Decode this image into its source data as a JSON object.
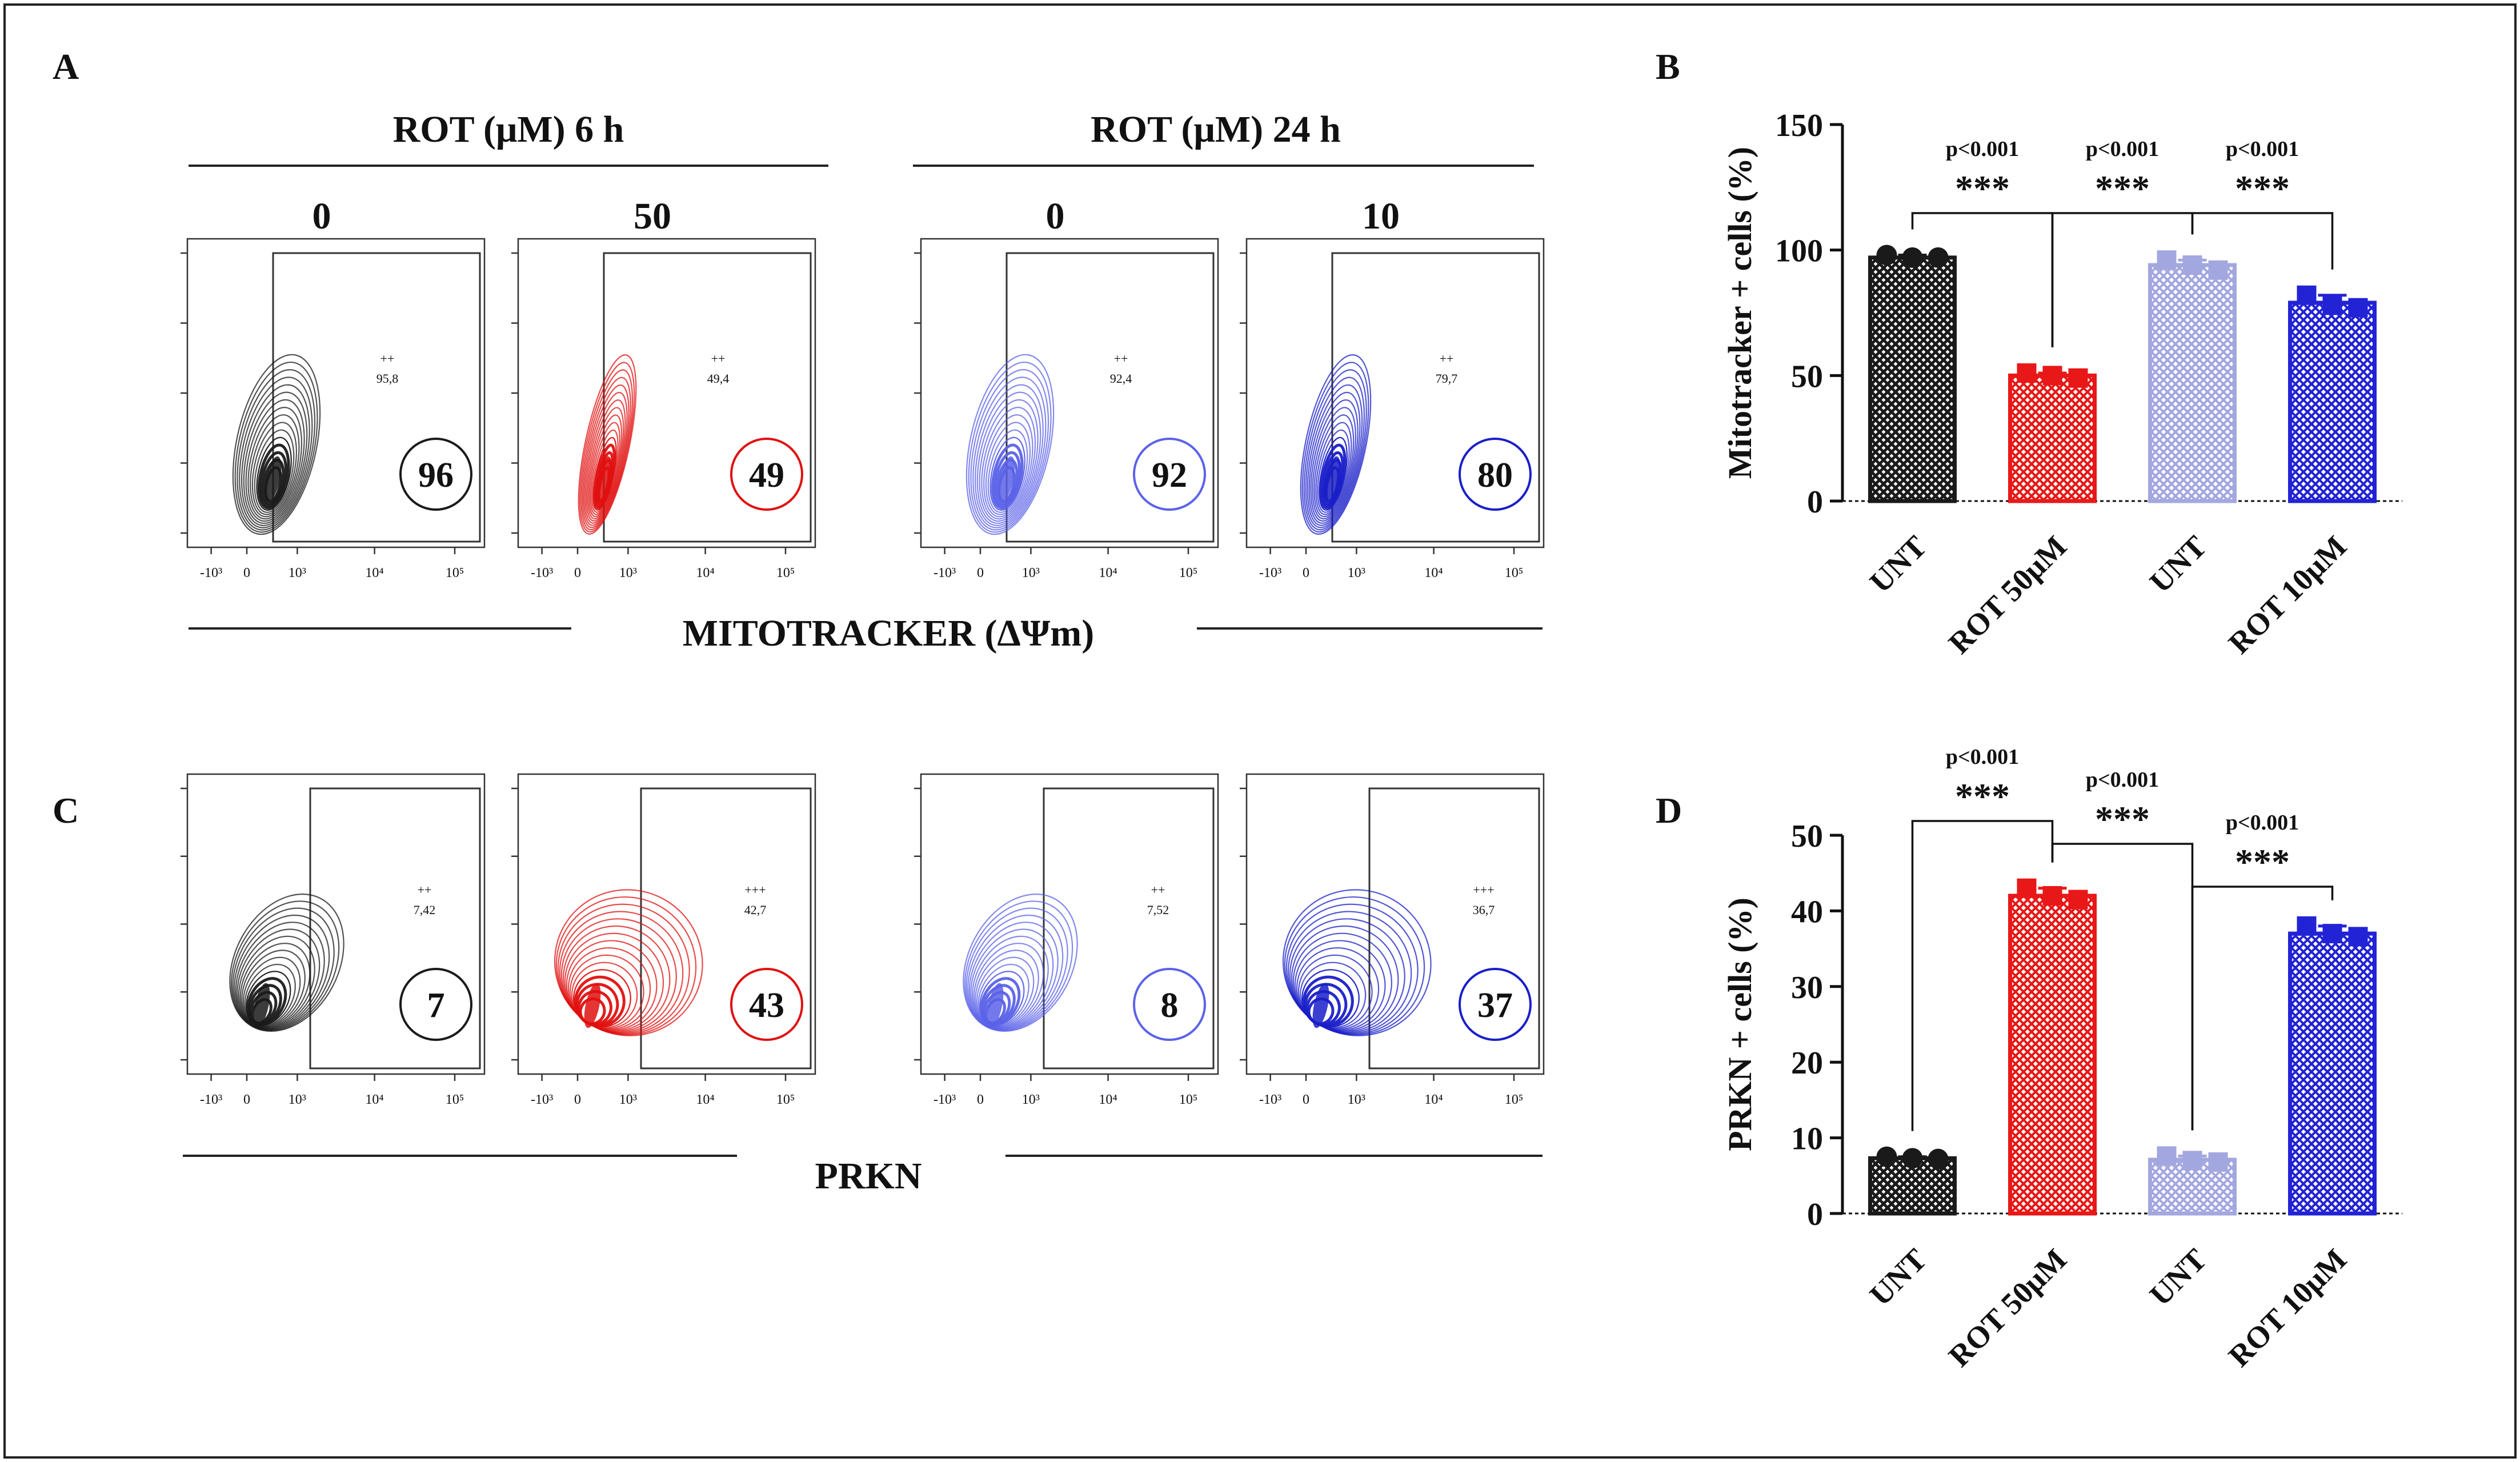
{
  "panels": {
    "a": "A",
    "b": "B",
    "c": "C",
    "d": "D"
  },
  "flow": {
    "group_6h": "ROT (μM) 6 h",
    "group_24h": "ROT (μM) 24 h",
    "mito_axis": "MITOTRACKER (ΔΨm)",
    "prkn_axis": "PRKN",
    "columns": [
      {
        "dose": "0",
        "color": "#1a1a1a"
      },
      {
        "dose": "50",
        "color": "#e01010"
      },
      {
        "dose": "0",
        "color": "#5b62e8"
      },
      {
        "dose": "10",
        "color": "#1a1fc8"
      }
    ],
    "mito_gates": [
      {
        "marker": "++",
        "value": "95,8",
        "circle": "96"
      },
      {
        "marker": "++",
        "value": "49,4",
        "circle": "49"
      },
      {
        "marker": "++",
        "value": "92,4",
        "circle": "92"
      },
      {
        "marker": "++",
        "value": "79,7",
        "circle": "80"
      }
    ],
    "prkn_gates": [
      {
        "marker": "++",
        "value": "7,42",
        "circle": "7"
      },
      {
        "marker": "+++",
        "value": "42,7",
        "circle": "43"
      },
      {
        "marker": "++",
        "value": "7,52",
        "circle": "8"
      },
      {
        "marker": "+++",
        "value": "36,7",
        "circle": "37"
      }
    ],
    "x_ticks": [
      "-10³",
      "0",
      "10³",
      "10⁴",
      "10⁵"
    ]
  },
  "chart_data": [
    {
      "panel": "B",
      "type": "bar",
      "ylabel": "Mitotracker + cells (%)",
      "ylim": [
        0,
        150
      ],
      "yticks": [
        0,
        50,
        100,
        150
      ],
      "categories": [
        "UNT",
        "ROT 50μM",
        "UNT",
        "ROT 10μM"
      ],
      "values": [
        97,
        50,
        94,
        79
      ],
      "points": [
        [
          98,
          97,
          97
        ],
        [
          51,
          50,
          49
        ],
        [
          96,
          94,
          92
        ],
        [
          82,
          78,
          77
        ]
      ],
      "colors": [
        "#1a1a1a",
        "#e81818",
        "#a3a7df",
        "#2323d6"
      ],
      "comparisons": [
        {
          "from": 0,
          "to": 1,
          "p": "p<0.001",
          "stars": "***"
        },
        {
          "from": 1,
          "to": 2,
          "p": "p<0.001",
          "stars": "***"
        },
        {
          "from": 2,
          "to": 3,
          "p": "p<0.001",
          "stars": "***"
        }
      ]
    },
    {
      "panel": "D",
      "type": "bar",
      "ylabel": "PRKN + cells (%)",
      "ylim": [
        0,
        50
      ],
      "yticks": [
        0,
        10,
        20,
        30,
        40,
        50
      ],
      "categories": [
        "UNT",
        "ROT 50μM",
        "UNT",
        "ROT 10μM"
      ],
      "values": [
        7.3,
        42,
        7.1,
        37
      ],
      "points": [
        [
          7.5,
          7.3,
          7.2
        ],
        [
          43,
          42,
          41.5
        ],
        [
          7.6,
          7.0,
          6.8
        ],
        [
          38,
          37,
          36.6
        ]
      ],
      "colors": [
        "#1a1a1a",
        "#e81818",
        "#a3a7df",
        "#2323d6"
      ],
      "comparisons": [
        {
          "from": 0,
          "to": 1,
          "p": "p<0.001",
          "stars": "***"
        },
        {
          "from": 1,
          "to": 2,
          "p": "p<0.001",
          "stars": "***"
        },
        {
          "from": 2,
          "to": 3,
          "p": "p<0.001",
          "stars": "***"
        }
      ]
    }
  ]
}
